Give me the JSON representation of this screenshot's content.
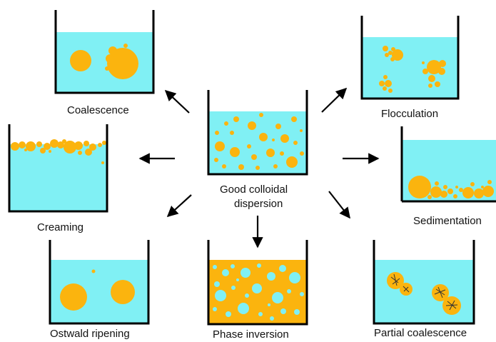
{
  "colors": {
    "water": "#80f0f4",
    "oil": "#fbb40e",
    "line": "#000000"
  },
  "center": {
    "label_line1": "Good colloidal",
    "label_line2": "dispersion"
  },
  "states": [
    {
      "id": "coalescence",
      "label": "Coalescence"
    },
    {
      "id": "flocculation",
      "label": "Flocculation"
    },
    {
      "id": "creaming",
      "label": "Creaming"
    },
    {
      "id": "sedimentation",
      "label": "Sedimentation"
    },
    {
      "id": "ostwald",
      "label": "Ostwald ripening"
    },
    {
      "id": "phase-inversion",
      "label": "Phase inversion"
    },
    {
      "id": "partial-coalescence",
      "label": "Partial coalescence"
    }
  ]
}
